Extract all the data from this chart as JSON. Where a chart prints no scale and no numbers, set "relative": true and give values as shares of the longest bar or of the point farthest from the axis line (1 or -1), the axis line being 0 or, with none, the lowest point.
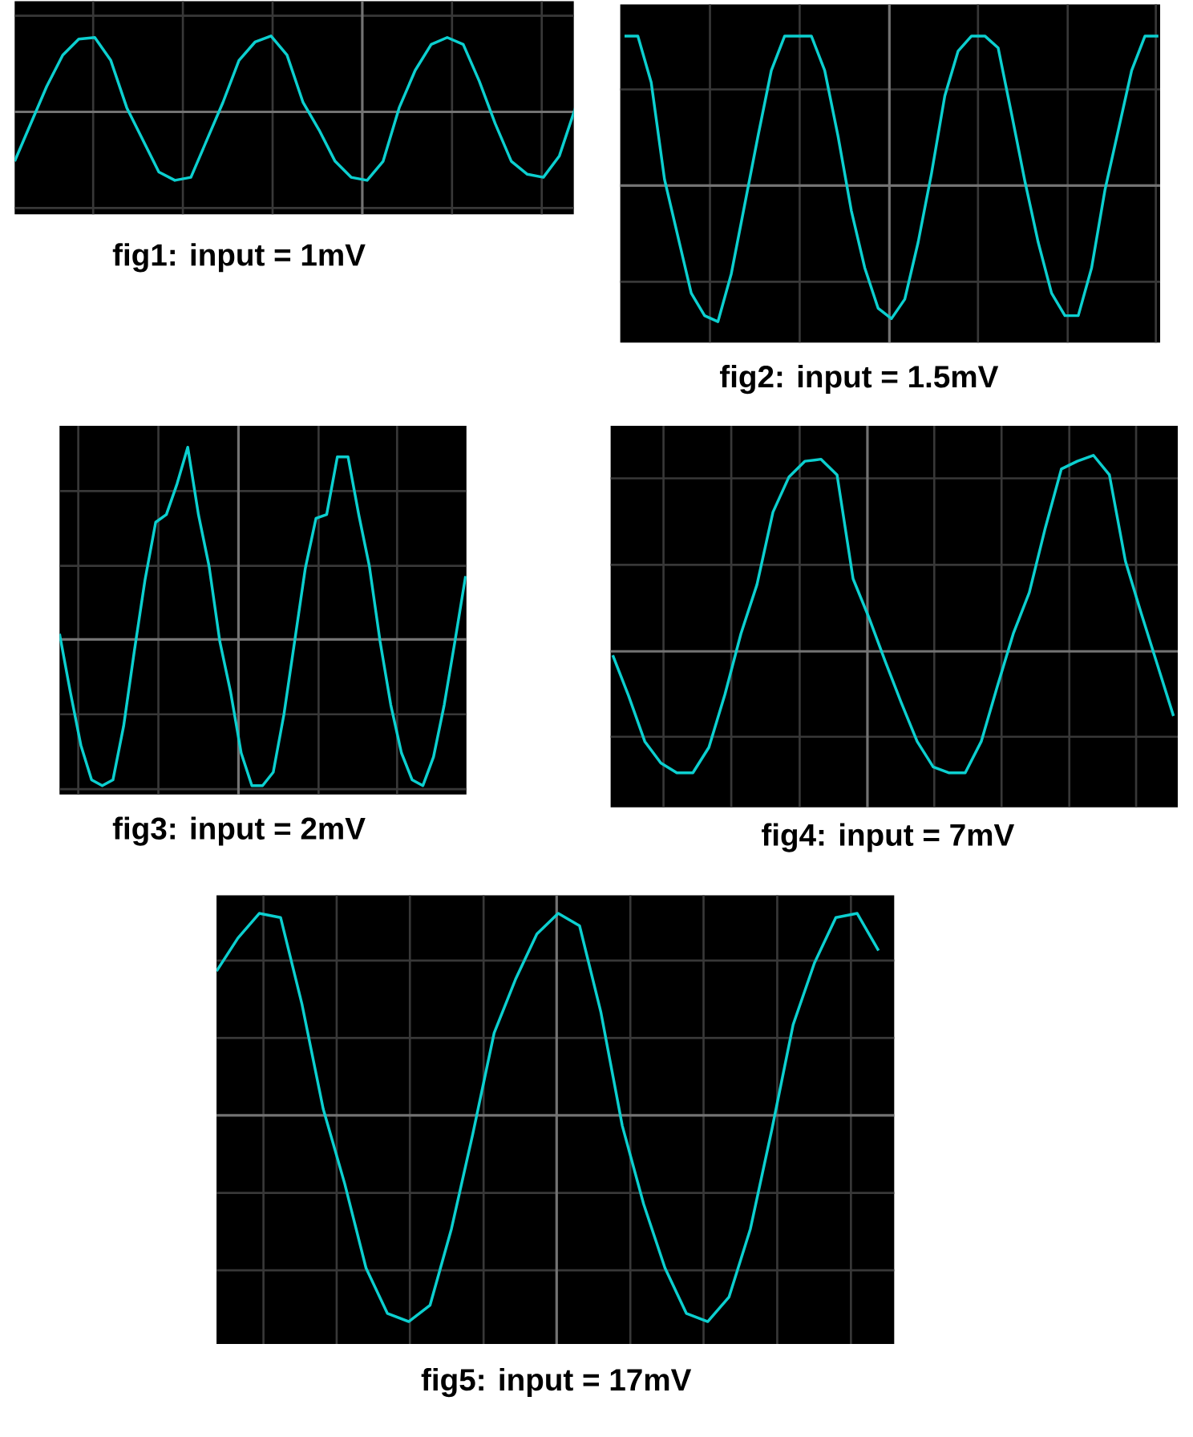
{
  "chart_data": [
    {
      "type": "line",
      "title": "fig1: input = 1mV",
      "relative": true,
      "grid": true,
      "color": "#0ccfcf",
      "categories": [
        null,
        null,
        null,
        null,
        null,
        null,
        null,
        null,
        null,
        null,
        null,
        null,
        null,
        null,
        null,
        null,
        null,
        null,
        null,
        null,
        null,
        null,
        null,
        null,
        null,
        null,
        null,
        null,
        null,
        null,
        null,
        null,
        null,
        null,
        null,
        null
      ],
      "values": [
        -0.64,
        -0.15,
        0.34,
        0.75,
        0.96,
        0.98,
        0.68,
        0.06,
        -0.36,
        -0.78,
        -0.89,
        -0.85,
        -0.36,
        0.13,
        0.68,
        0.92,
        1,
        0.75,
        0.13,
        -0.23,
        -0.64,
        -0.85,
        -0.89,
        -0.64,
        0.06,
        0.55,
        0.89,
        0.98,
        0.89,
        0.41,
        -0.15,
        -0.64,
        -0.81,
        -0.85,
        -0.57,
        0.06
      ]
    },
    {
      "type": "line",
      "title": "fig2: input = 1.5mV",
      "relative": true,
      "grid": true,
      "color": "#0ccfcf",
      "categories": [
        null,
        null,
        null,
        null,
        null,
        null,
        null,
        null,
        null,
        null,
        null,
        null,
        null,
        null,
        null,
        null,
        null,
        null,
        null,
        null,
        null,
        null,
        null,
        null,
        null,
        null,
        null,
        null,
        null,
        null,
        null,
        null,
        null,
        null,
        null,
        null,
        null,
        null,
        null,
        null,
        null
      ],
      "values": [
        1,
        1,
        0.69,
        0.04,
        -0.34,
        -0.72,
        -0.87,
        -0.91,
        -0.59,
        -0.13,
        0.33,
        0.77,
        1,
        1,
        1,
        0.77,
        0.33,
        -0.17,
        -0.55,
        -0.82,
        -0.89,
        -0.76,
        -0.38,
        0.08,
        0.6,
        0.9,
        1,
        1,
        0.92,
        0.48,
        0.03,
        -0.38,
        -0.72,
        -0.87,
        -0.87,
        -0.55,
        -0.03,
        0.37,
        0.77,
        1,
        1
      ]
    },
    {
      "type": "line",
      "title": "fig3: input = 2mV",
      "relative": true,
      "grid": true,
      "color": "#0ccfcf",
      "categories": [
        null,
        null,
        null,
        null,
        null,
        null,
        null,
        null,
        null,
        null,
        null,
        null,
        null,
        null,
        null,
        null,
        null,
        null,
        null,
        null,
        null,
        null,
        null,
        null,
        null,
        null,
        null,
        null,
        null,
        null,
        null,
        null,
        null,
        null,
        null,
        null,
        null,
        null,
        null
      ],
      "values": [
        0.03,
        -0.27,
        -0.55,
        -0.73,
        -0.76,
        -0.73,
        -0.45,
        -0.06,
        0.31,
        0.61,
        0.65,
        0.81,
        1,
        0.65,
        0.38,
        -0.01,
        -0.27,
        -0.59,
        -0.76,
        -0.76,
        -0.69,
        -0.39,
        -0.01,
        0.37,
        0.63,
        0.65,
        0.95,
        0.95,
        0.65,
        0.38,
        -0.01,
        -0.34,
        -0.59,
        -0.73,
        -0.76,
        -0.61,
        -0.34,
        -0.01,
        0.33
      ]
    },
    {
      "type": "line",
      "title": "fig4: input = 7mV",
      "relative": true,
      "grid": true,
      "color": "#0ccfcf",
      "categories": [
        null,
        null,
        null,
        null,
        null,
        null,
        null,
        null,
        null,
        null,
        null,
        null,
        null,
        null,
        null,
        null,
        null,
        null,
        null,
        null,
        null,
        null,
        null,
        null,
        null,
        null,
        null,
        null,
        null,
        null,
        null,
        null,
        null,
        null,
        null,
        null
      ],
      "values": [
        -0.02,
        -0.23,
        -0.46,
        -0.57,
        -0.62,
        -0.62,
        -0.49,
        -0.22,
        0.09,
        0.34,
        0.71,
        0.89,
        0.97,
        0.98,
        0.9,
        0.37,
        0.17,
        -0.05,
        -0.26,
        -0.46,
        -0.59,
        -0.62,
        -0.62,
        -0.46,
        -0.18,
        0.09,
        0.3,
        0.63,
        0.93,
        0.97,
        1,
        0.9,
        0.46,
        0.19,
        -0.07,
        -0.33
      ]
    },
    {
      "type": "line",
      "title": "fig5: input = 17mV",
      "relative": true,
      "grid": true,
      "color": "#0ccfcf",
      "categories": [
        null,
        null,
        null,
        null,
        null,
        null,
        null,
        null,
        null,
        null,
        null,
        null,
        null,
        null,
        null,
        null,
        null,
        null,
        null,
        null,
        null,
        null,
        null,
        null,
        null,
        null,
        null,
        null,
        null,
        null,
        null,
        null
      ],
      "values": [
        0.7,
        0.86,
        0.98,
        0.96,
        0.54,
        0.03,
        -0.33,
        -0.74,
        -0.96,
        -1,
        -0.92,
        -0.55,
        -0.09,
        0.4,
        0.66,
        0.88,
        0.98,
        0.92,
        0.5,
        -0.05,
        -0.43,
        -0.74,
        -0.96,
        -1,
        -0.88,
        -0.55,
        -0.07,
        0.44,
        0.74,
        0.96,
        0.98,
        0.8
      ]
    }
  ]
}
